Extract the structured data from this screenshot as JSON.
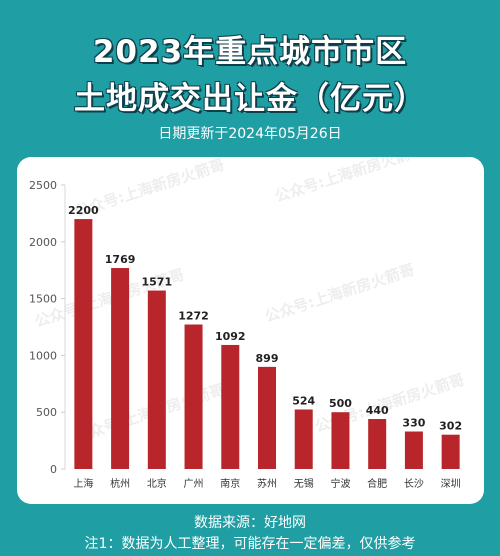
{
  "header": {
    "title_line1": "2023年重点城市市区",
    "title_line2": "土地成交出让金（亿元）",
    "date_line": "日期更新于2024年05月26日"
  },
  "footer": {
    "source": "数据来源：好地网",
    "note": "注1：数据为人工整理，可能存在一定偏差，仅供参考"
  },
  "watermark": {
    "text": "公众号:上海新房火箭哥"
  },
  "colors": {
    "background": "#1f9ea4",
    "bar": "#b8262c",
    "card": "#ffffff"
  },
  "chart_data": {
    "type": "bar",
    "title": "",
    "xlabel": "",
    "ylabel": "",
    "categories": [
      "上海",
      "杭州",
      "北京",
      "广州",
      "南京",
      "苏州",
      "无锡",
      "宁波",
      "合肥",
      "长沙",
      "深圳"
    ],
    "values": [
      2200,
      1769,
      1571,
      1272,
      1092,
      899,
      524,
      500,
      440,
      330,
      302
    ],
    "ylim": [
      0,
      2500
    ],
    "yticks": [
      0,
      500,
      1000,
      1500,
      2000,
      2500
    ],
    "grid": false,
    "data_labels": true
  }
}
